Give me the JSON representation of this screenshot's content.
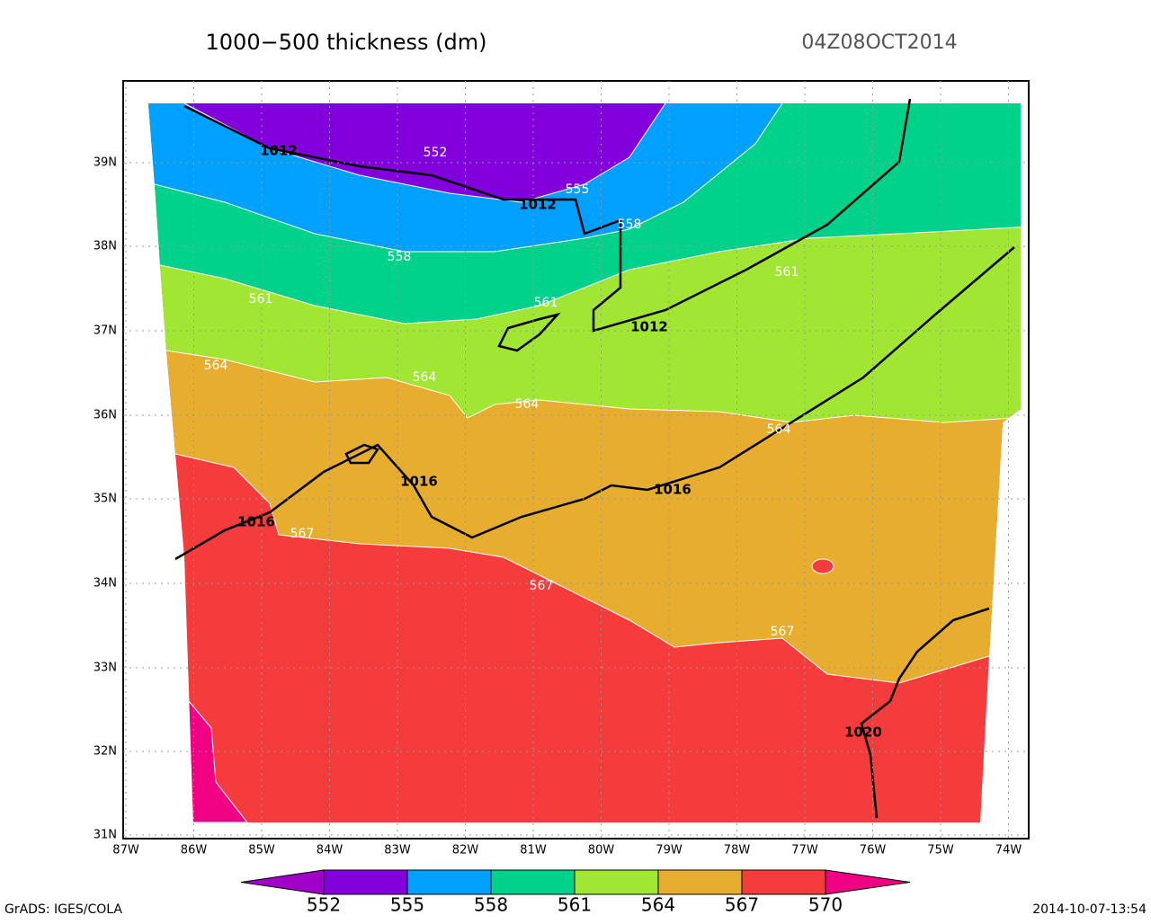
{
  "header": {
    "title": "1000−500 thickness (dm)",
    "valid_time": "04Z08OCT2014"
  },
  "map": {
    "lat_labels": [
      "39N",
      "38N",
      "37N",
      "36N",
      "35N",
      "34N",
      "33N",
      "32N",
      "31N"
    ],
    "lon_labels": [
      "87W",
      "86W",
      "85W",
      "84W",
      "83W",
      "82W",
      "81W",
      "80W",
      "79W",
      "78W",
      "77W",
      "76W",
      "75W",
      "74W"
    ],
    "thickness_labels": [
      "552",
      "555",
      "558",
      "558",
      "561",
      "561",
      "561",
      "564",
      "564",
      "564",
      "564",
      "567",
      "567",
      "567"
    ],
    "pressure_labels": [
      "1012",
      "1012",
      "1012",
      "1016",
      "1016",
      "1016",
      "1020"
    ]
  },
  "colorbar": {
    "colors": [
      "#a000c8",
      "#8200dc",
      "#00a0ff",
      "#00d28c",
      "#a0e632",
      "#e6ad2f",
      "#f53c3c",
      "#f00082"
    ],
    "labels": [
      "552",
      "555",
      "558",
      "561",
      "564",
      "567",
      "570"
    ]
  },
  "footer": {
    "left": "GrADS: IGES/COLA",
    "right": "2014-10-07-13:54"
  }
}
